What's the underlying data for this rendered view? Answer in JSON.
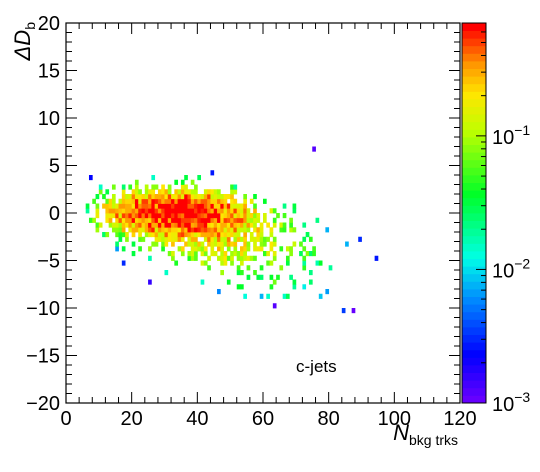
{
  "chart_data": {
    "type": "heatmap",
    "annotation": "c-jets",
    "xlabel": {
      "base": "N",
      "sub": "bkg trks"
    },
    "ylabel": {
      "base": "ΔD",
      "sub": "b"
    },
    "xlim": [
      0,
      120
    ],
    "ylim": [
      -20,
      20
    ],
    "x_ticks": [
      0,
      20,
      40,
      60,
      80,
      100,
      120
    ],
    "x_tick_labels": [
      "0",
      "20",
      "40",
      "60",
      "80",
      "100",
      "120"
    ],
    "y_ticks": [
      -20,
      -15,
      -10,
      -5,
      0,
      5,
      10,
      15,
      20
    ],
    "y_tick_labels": [
      "−20",
      "−15",
      "−10",
      "−5",
      "0",
      "5",
      "10",
      "15",
      "20"
    ],
    "colorbar": {
      "scale": "log",
      "range": [
        0.001,
        0.7
      ],
      "ticks": [
        {
          "value": 0.001,
          "base": "10",
          "exp": "−3"
        },
        {
          "value": 0.01,
          "base": "10",
          "exp": "−2"
        },
        {
          "value": 0.1,
          "base": "10",
          "exp": "−1"
        }
      ]
    },
    "bins": {
      "x_width": 1,
      "y_width": 0.5
    },
    "distribution": {
      "peak": [
        33,
        0.2
      ],
      "core_x_range": [
        10,
        75
      ],
      "core_y_range": [
        -8,
        4
      ],
      "tail_x_max": 100,
      "outliers": [
        [
          75,
          6.5
        ],
        [
          63,
          -10
        ]
      ]
    }
  }
}
